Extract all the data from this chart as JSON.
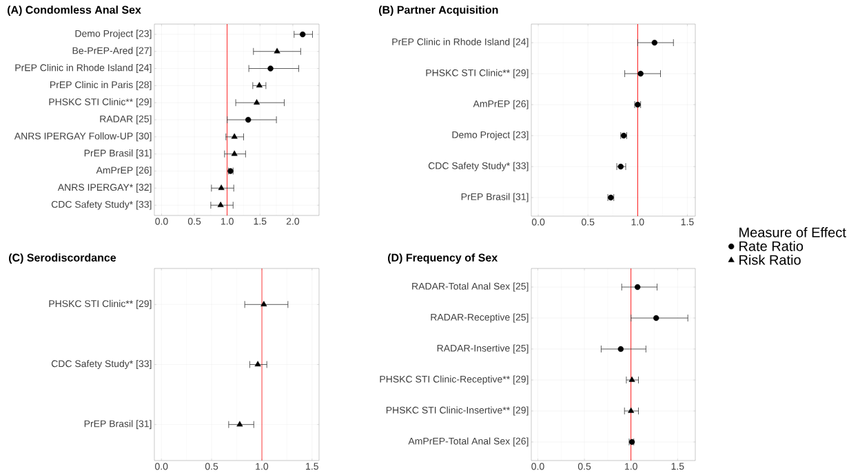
{
  "chart_data": [
    {
      "type": "scatter",
      "title": "(A) Condomless Anal Sex",
      "orientation": "horizontal",
      "categories": [
        "Demo Project [23]",
        "Be-PrEP-Ared [27]",
        "PrEP Clinic in Rhode Island [24]",
        "PrEP Clinic in Paris [28]",
        "PHSKC STI Clinic** [29]",
        "RADAR [25]",
        "ANRS IPERGAY Follow-UP [30]",
        "PrEP Brasil [31]",
        "AmPrEP [26]",
        "ANRS IPERGAY* [32]",
        "CDC Safety Study* [33]"
      ],
      "series": [
        {
          "color": "#000000",
          "marker": "circle",
          "values": [
            2.15,
            null,
            1.66,
            null,
            null,
            1.32,
            null,
            null,
            1.05,
            null,
            null
          ],
          "errors": [
            [
              2.02,
              2.3
            ],
            null,
            [
              1.33,
              2.09
            ],
            null,
            null,
            [
              1.0,
              1.75
            ],
            null,
            null,
            [
              1.02,
              1.09
            ],
            null,
            null
          ]
        },
        {
          "color": "#000000",
          "marker": "triangle",
          "values": [
            null,
            1.76,
            null,
            1.49,
            1.45,
            null,
            1.11,
            1.11,
            null,
            0.91,
            0.9
          ],
          "errors": [
            null,
            [
              1.4,
              2.12
            ],
            null,
            [
              1.39,
              1.59
            ],
            [
              1.13,
              1.87
            ],
            null,
            [
              0.98,
              1.25
            ],
            [
              0.96,
              1.28
            ],
            null,
            [
              0.76,
              1.1
            ],
            [
              0.75,
              1.09
            ]
          ]
        }
      ],
      "xlim": [
        -0.11,
        2.4
      ],
      "xticks": [
        {
          "value": 0,
          "label": "0.0"
        },
        {
          "value": 0.5,
          "label": "0.5"
        },
        {
          "value": 1,
          "label": "1.0"
        },
        {
          "value": 1.5,
          "label": "1.5"
        },
        {
          "value": 2,
          "label": "2.0"
        }
      ],
      "grid": true,
      "ref_lines": [
        {
          "axis": "x",
          "value": 1,
          "color": "#ff0000"
        }
      ]
    },
    {
      "type": "scatter",
      "title": "(B) Partner Acquisition",
      "orientation": "horizontal",
      "categories": [
        "PrEP Clinic in Rhode Island [24]",
        "PHSKC STI Clinic** [29]",
        "AmPrEP [26]",
        "Demo Project [23]",
        "CDC Safety Study* [33]",
        "PrEP Brasil [31]"
      ],
      "series": [
        {
          "color": "#000000",
          "marker": "circle",
          "values": [
            1.17,
            1.03,
            1.0,
            0.86,
            0.83,
            0.73
          ],
          "errors": [
            [
              1.0,
              1.36
            ],
            [
              0.87,
              1.23
            ],
            [
              0.97,
              1.03
            ],
            [
              0.83,
              0.89
            ],
            [
              0.79,
              0.88
            ],
            [
              0.7,
              0.76
            ]
          ]
        }
      ],
      "xlim": [
        -0.07,
        1.58
      ],
      "xticks": [
        {
          "value": 0,
          "label": "0.0"
        },
        {
          "value": 0.5,
          "label": "0.5"
        },
        {
          "value": 1,
          "label": "1.0"
        },
        {
          "value": 1.5,
          "label": "1.5"
        }
      ],
      "grid": true,
      "ref_lines": [
        {
          "axis": "x",
          "value": 1,
          "color": "#ff0000"
        }
      ]
    },
    {
      "type": "scatter",
      "title": "(C) Serodiscordance",
      "orientation": "horizontal",
      "categories": [
        "PHSKC STI Clinic** [29]",
        "CDC Safety Study* [33]",
        "PrEP Brasil [31]"
      ],
      "series": [
        {
          "color": "#000000",
          "marker": "triangle",
          "values": [
            1.02,
            0.96,
            0.78
          ],
          "errors": [
            [
              0.83,
              1.26
            ],
            [
              0.88,
              1.05
            ],
            [
              0.67,
              0.92
            ]
          ]
        }
      ],
      "xlim": [
        -0.07,
        1.57
      ],
      "xticks": [
        {
          "value": 0,
          "label": "0.0"
        },
        {
          "value": 0.5,
          "label": "0.5"
        },
        {
          "value": 1,
          "label": "1.0"
        },
        {
          "value": 1.5,
          "label": "1.5"
        }
      ],
      "grid": true,
      "ref_lines": [
        {
          "axis": "x",
          "value": 1,
          "color": "#ff0000"
        }
      ]
    },
    {
      "type": "scatter",
      "title": "(D) Frequency of Sex",
      "orientation": "horizontal",
      "categories": [
        "RADAR-Total Anal Sex [25]",
        "RADAR-Receptive [25]",
        "RADAR-Insertive [25]",
        "PHSKC STI Clinic-Receptive** [29]",
        "PHSKC STI Clinic-Insertive** [29]",
        "AmPrEP-Total Anal Sex [26]"
      ],
      "series": [
        {
          "name": "Rate Ratio",
          "color": "#000000",
          "marker": "circle",
          "values": [
            1.07,
            1.27,
            0.89,
            null,
            null,
            1.01
          ],
          "errors": [
            [
              0.9,
              1.28
            ],
            [
              1.0,
              1.61
            ],
            [
              0.68,
              1.16
            ],
            null,
            null,
            [
              0.98,
              1.03
            ]
          ]
        },
        {
          "name": "Risk Ratio",
          "color": "#000000",
          "marker": "triangle",
          "values": [
            null,
            null,
            null,
            1.01,
            1.0,
            null
          ],
          "errors": [
            null,
            null,
            null,
            [
              0.95,
              1.08
            ],
            [
              0.93,
              1.08
            ],
            null
          ]
        }
      ],
      "xlim": [
        -0.07,
        1.69
      ],
      "xticks": [
        {
          "value": 0,
          "label": "0.0"
        },
        {
          "value": 0.5,
          "label": "0.5"
        },
        {
          "value": 1,
          "label": "1.0"
        },
        {
          "value": 1.5,
          "label": "1.5"
        }
      ],
      "grid": true,
      "ref_lines": [
        {
          "axis": "x",
          "value": 1,
          "color": "#ff0000"
        }
      ],
      "legend": "right",
      "legend_title": "Measure of Effect"
    }
  ]
}
